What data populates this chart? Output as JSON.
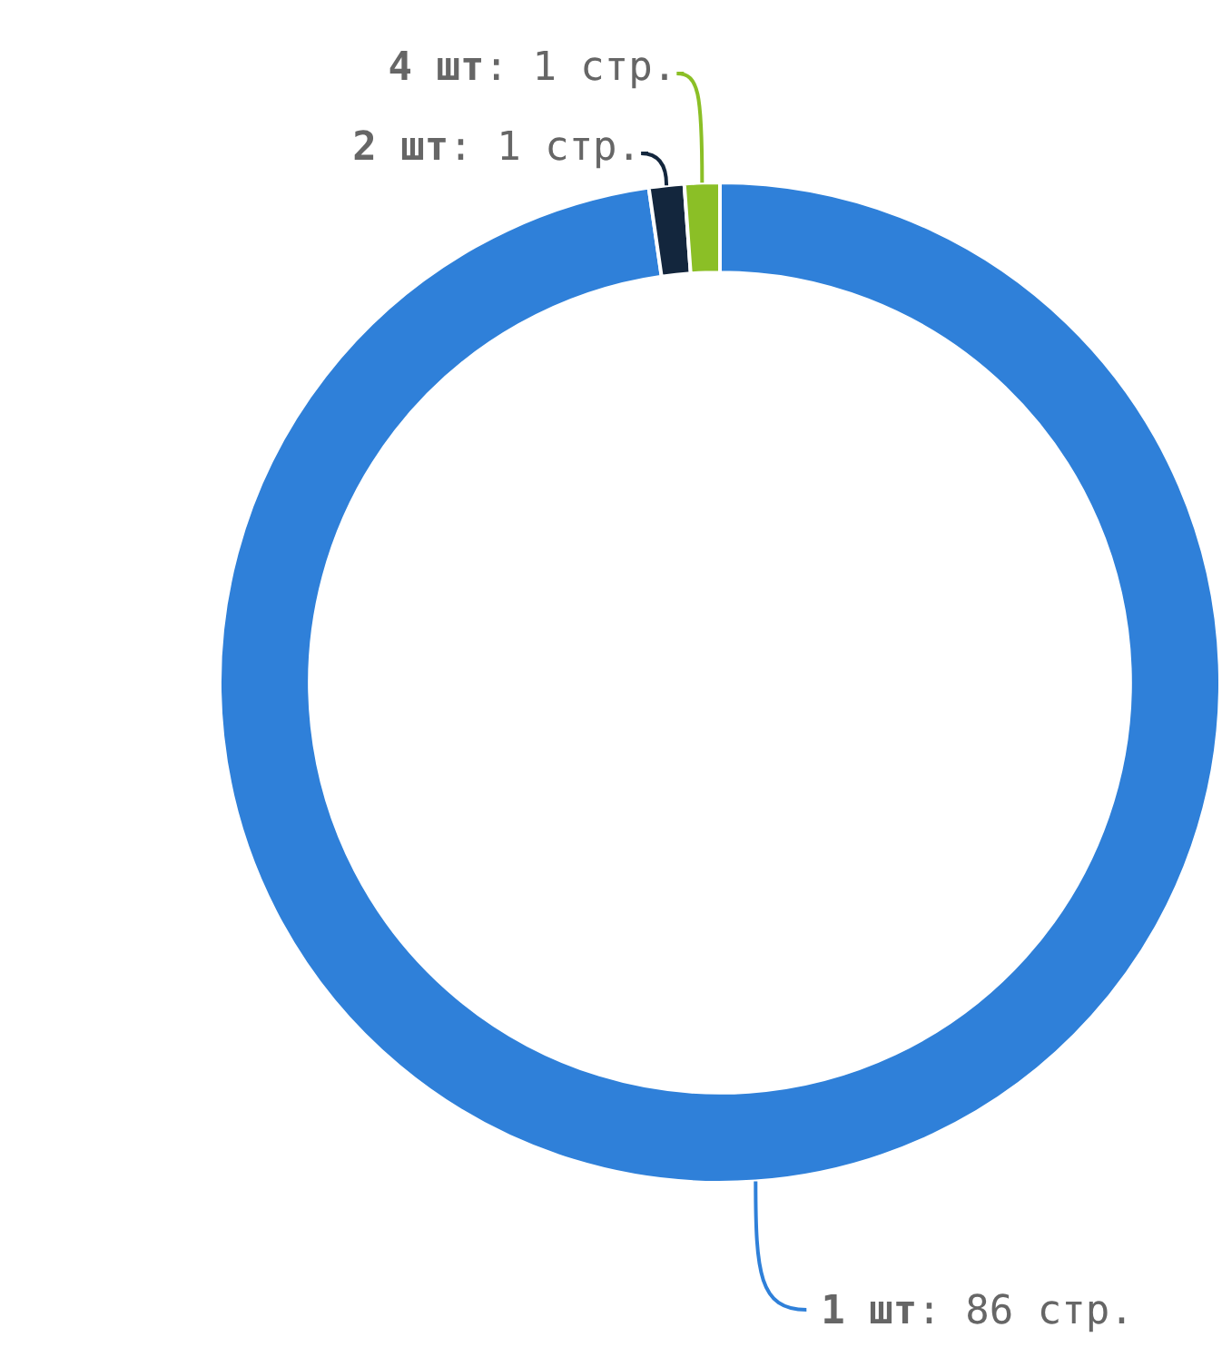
{
  "chart_data": {
    "type": "donut",
    "categories": [
      "1 шт",
      "2 шт",
      "4 шт"
    ],
    "values": [
      86,
      1,
      1
    ],
    "colors": [
      "#2f80d9",
      "#13263d",
      "#8bbf26"
    ],
    "value_labels": [
      ": 86 стр.",
      ": 1 стр.",
      ": 1 стр."
    ],
    "legend": false
  }
}
